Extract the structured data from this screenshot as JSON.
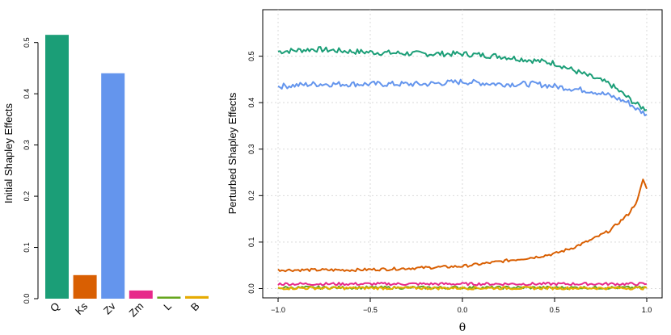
{
  "chart_data": [
    {
      "type": "bar",
      "ylabel": "Initial Shapley Effects",
      "xlabel": "",
      "ylim": [
        0,
        0.52
      ],
      "yticks": [
        0.0,
        0.1,
        0.2,
        0.3,
        0.4,
        0.5
      ],
      "ytick_labels": [
        "0.0",
        "0.1",
        "0.2",
        "0.3",
        "0.4",
        "0.5"
      ],
      "categories": [
        "Q",
        "Ks",
        "Zv",
        "Zm",
        "L",
        "B"
      ],
      "values": [
        0.515,
        0.046,
        0.44,
        0.016,
        0.004,
        0.005
      ],
      "colors": [
        "#1b9e77",
        "#d95f02",
        "#6495ed",
        "#e7298a",
        "#66a61e",
        "#e6ab02"
      ],
      "grid": false,
      "legend": "none"
    },
    {
      "type": "line",
      "ylabel": "Perturbed Shapley Effects",
      "xlabel": "θ",
      "xlim": [
        -1.0,
        1.0
      ],
      "ylim": [
        -0.02,
        0.6
      ],
      "xticks": [
        -1.0,
        -0.5,
        0.0,
        0.5,
        1.0
      ],
      "xtick_labels": [
        "−1.0",
        "−0.5",
        "0.0",
        "0.5",
        "1.0"
      ],
      "yticks": [
        0.0,
        0.1,
        0.2,
        0.3,
        0.4,
        0.5
      ],
      "ytick_labels": [
        "0.0",
        "0.1",
        "0.2",
        "0.3",
        "0.4",
        "0.5"
      ],
      "grid": true,
      "legend": "none",
      "series": [
        {
          "color": "#1b9e77",
          "x": [
            -1.0,
            -0.8,
            -0.6,
            -0.4,
            -0.2,
            0.0,
            0.2,
            0.4,
            0.5,
            0.6,
            0.7,
            0.8,
            0.9,
            0.95,
            1.0
          ],
          "y": [
            0.51,
            0.515,
            0.51,
            0.507,
            0.505,
            0.505,
            0.5,
            0.49,
            0.485,
            0.47,
            0.455,
            0.44,
            0.41,
            0.395,
            0.385
          ]
        },
        {
          "color": "#6495ed",
          "x": [
            -1.0,
            -0.8,
            -0.6,
            -0.4,
            -0.2,
            0.0,
            0.2,
            0.4,
            0.5,
            0.6,
            0.7,
            0.8,
            0.9,
            0.95,
            1.0
          ],
          "y": [
            0.435,
            0.44,
            0.44,
            0.44,
            0.44,
            0.445,
            0.44,
            0.44,
            0.435,
            0.43,
            0.425,
            0.415,
            0.4,
            0.385,
            0.375
          ]
        },
        {
          "color": "#d95f02",
          "x": [
            -1.0,
            -0.8,
            -0.6,
            -0.4,
            -0.2,
            0.0,
            0.2,
            0.4,
            0.5,
            0.6,
            0.7,
            0.8,
            0.9,
            0.95,
            0.98,
            1.0
          ],
          "y": [
            0.04,
            0.04,
            0.04,
            0.042,
            0.045,
            0.048,
            0.058,
            0.068,
            0.075,
            0.088,
            0.105,
            0.125,
            0.16,
            0.19,
            0.235,
            0.215
          ]
        },
        {
          "color": "#e7298a",
          "x": [
            -1.0,
            -0.5,
            0.0,
            0.5,
            1.0
          ],
          "y": [
            0.01,
            0.01,
            0.01,
            0.01,
            0.01
          ]
        },
        {
          "color": "#66a61e",
          "x": [
            -1.0,
            -0.5,
            0.0,
            0.5,
            1.0
          ],
          "y": [
            0.002,
            0.002,
            0.002,
            0.002,
            0.002
          ]
        },
        {
          "color": "#e6ab02",
          "x": [
            -1.0,
            -0.5,
            0.0,
            0.5,
            1.0
          ],
          "y": [
            0.001,
            0.001,
            0.001,
            0.001,
            0.001
          ]
        }
      ]
    }
  ]
}
